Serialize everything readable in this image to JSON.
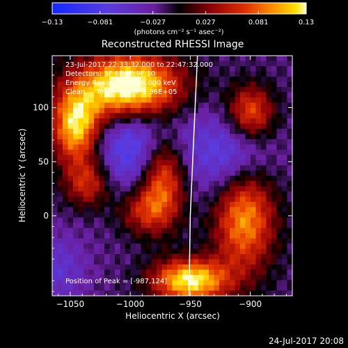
{
  "chart_data": {
    "type": "heatmap",
    "title": "Reconstructed RHESSI Image",
    "xlabel": "Heliocentric X (arcsec)",
    "ylabel": "Heliocentric Y (arcsec)",
    "xlim": [
      -1065,
      -865
    ],
    "ylim": [
      -74,
      148
    ],
    "xticks": [
      {
        "v": -1050,
        "label": "−1050"
      },
      {
        "v": -1000,
        "label": "−1000"
      },
      {
        "v": -950,
        "label": "−950"
      },
      {
        "v": -900,
        "label": "−900"
      }
    ],
    "yticks": [
      {
        "v": 100,
        "label": "100"
      },
      {
        "v": 50,
        "label": "50"
      },
      {
        "v": 0,
        "label": "0"
      }
    ],
    "colorbar": {
      "range": [
        -0.13,
        0.13
      ],
      "ticks": [
        {
          "v": -0.13,
          "label": "−0.13"
        },
        {
          "v": -0.081,
          "label": "−0.081"
        },
        {
          "v": -0.027,
          "label": "−0.027"
        },
        {
          "v": 0.027,
          "label": "0.027"
        },
        {
          "v": 0.081,
          "label": "0.081"
        },
        {
          "v": 0.13,
          "label": "0.13"
        }
      ],
      "unit_label": "(photons cm⁻² s⁻¹ asec⁻²)"
    },
    "annotations": [
      "23-Jul-2017 22:33:32.000 to 22:47:32.000",
      "Detectors: 3F 6F 8F 9F 10",
      "Energy Range: 3.000-6.000 keV",
      "Clean     Total counts: 1.36E+05"
    ],
    "peak_label": "Position of Peak = [-987,124]",
    "peak": {
      "x": -987,
      "y": 124
    },
    "blobs": [
      {
        "x": -1000,
        "y": 118,
        "sx": 30,
        "sy": 22,
        "a": 0.2
      },
      {
        "x": -1045,
        "y": 82,
        "sx": 14,
        "sy": 24,
        "a": 0.14
      },
      {
        "x": -1035,
        "y": 30,
        "sx": 14,
        "sy": 16,
        "a": 0.08
      },
      {
        "x": -973,
        "y": 38,
        "sx": 14,
        "sy": 30,
        "a": 0.13
      },
      {
        "x": -990,
        "y": 5,
        "sx": 16,
        "sy": 16,
        "a": 0.07
      },
      {
        "x": -950,
        "y": -60,
        "sx": 22,
        "sy": 14,
        "a": 0.15
      },
      {
        "x": -905,
        "y": 0,
        "sx": 18,
        "sy": 36,
        "a": 0.12
      },
      {
        "x": -900,
        "y": 95,
        "sx": 14,
        "sy": 18,
        "a": 0.1
      },
      {
        "x": -990,
        "y": 70,
        "sx": 28,
        "sy": 38,
        "a": -0.09
      },
      {
        "x": -915,
        "y": 55,
        "sx": 22,
        "sy": 28,
        "a": -0.07
      },
      {
        "x": -1060,
        "y": -50,
        "sx": 16,
        "sy": 22,
        "a": -0.04
      }
    ],
    "limb": [
      [
        -944,
        148
      ],
      [
        -946,
        100
      ],
      [
        -948,
        50
      ],
      [
        -950,
        0
      ],
      [
        -951,
        -74
      ]
    ]
  },
  "footer": {
    "datetime": "24-Jul-2017 20:08"
  }
}
